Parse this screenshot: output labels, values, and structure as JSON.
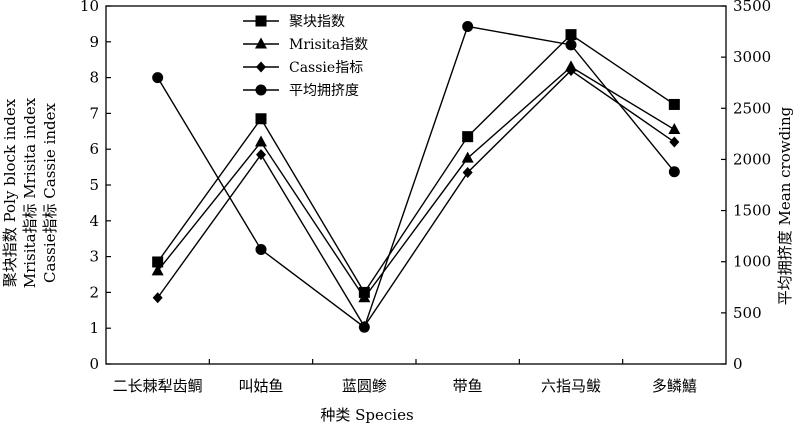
{
  "chart_data": {
    "type": "line",
    "categories": [
      "二长棘犁齿鲷",
      "叫姑鱼",
      "蓝圆鲹",
      "带鱼",
      "六指马鲅",
      "多鳞鱚"
    ],
    "xlabel": "种类 Species",
    "ylabel_left": [
      "聚块指数 Poly block index",
      "Mrisita指标 Mrisita index",
      "Cassie指标 Cassie index"
    ],
    "ylabel_right": "平均拥挤度 Mean crowding",
    "ylim_left": [
      0,
      10
    ],
    "ylim_right": [
      0,
      3500
    ],
    "yticks_left": [
      "0",
      "1",
      "2",
      "3",
      "4",
      "5",
      "6",
      "7",
      "8",
      "9",
      "10"
    ],
    "yticks_right": [
      "0",
      "500",
      "1000",
      "1500",
      "2000",
      "2500",
      "3000",
      "3500"
    ],
    "grid": false,
    "legend_position": "top-center",
    "series": [
      {
        "name": "聚块指数",
        "marker": "square",
        "axis": "left",
        "values": [
          2.85,
          6.85,
          2.0,
          6.35,
          9.2,
          7.25
        ]
      },
      {
        "name": "Mrisita指数",
        "marker": "triangle",
        "axis": "left",
        "values": [
          2.6,
          6.2,
          1.85,
          5.75,
          8.3,
          6.55
        ]
      },
      {
        "name": "Cassie指标",
        "marker": "diamond",
        "axis": "left",
        "values": [
          1.85,
          5.85,
          1.05,
          5.35,
          8.2,
          6.2
        ]
      },
      {
        "name": "平均拥挤度",
        "marker": "circle",
        "axis": "right",
        "values": [
          2800,
          1120,
          360,
          3300,
          3120,
          1880
        ]
      }
    ]
  }
}
